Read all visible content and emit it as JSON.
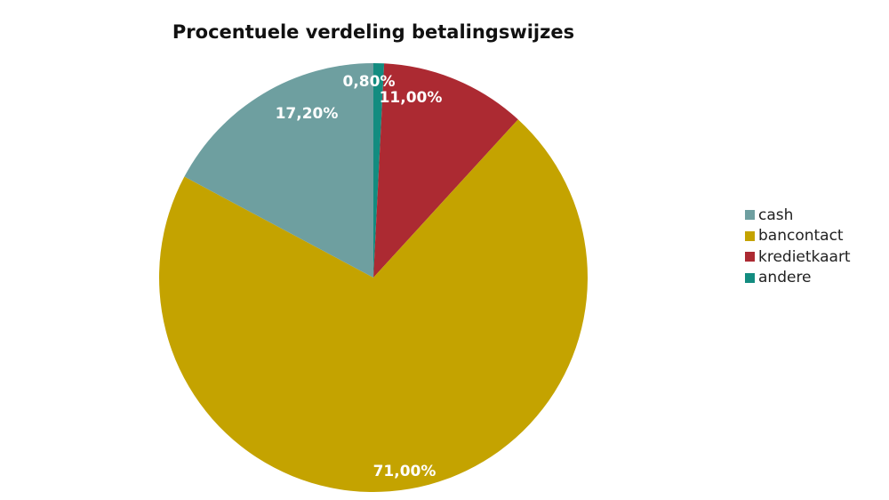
{
  "chart_data": {
    "type": "pie",
    "title": "Procentuele verdeling betalingswijzes",
    "legend_position": "right",
    "slices": [
      {
        "name": "cash",
        "value": 17.2,
        "label": "17,20%",
        "color": "#6e9fa0"
      },
      {
        "name": "bancontact",
        "value": 71.0,
        "label": "71,00%",
        "color": "#c4a300"
      },
      {
        "name": "kredietkaart",
        "value": 11.0,
        "label": "11,00%",
        "color": "#ac2a32"
      },
      {
        "name": "andere",
        "value": 0.8,
        "label": "0,80%",
        "color": "#138c80"
      }
    ]
  }
}
